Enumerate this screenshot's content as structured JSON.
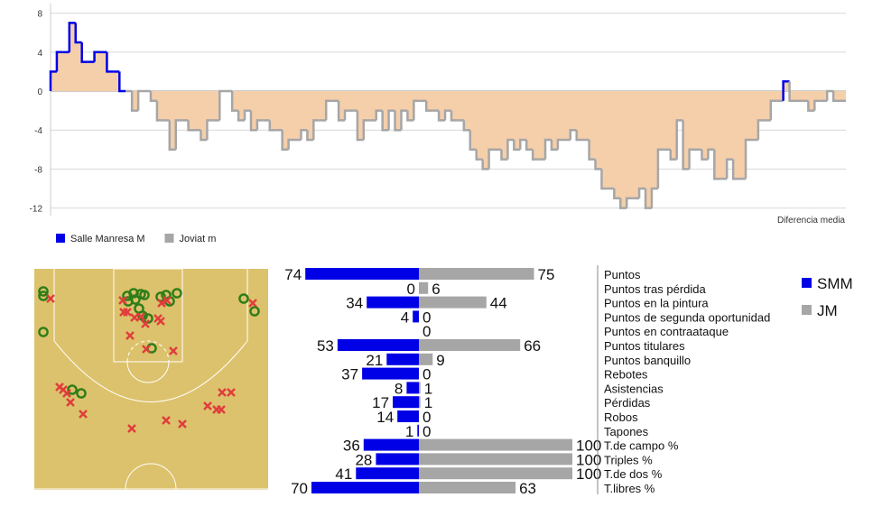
{
  "chart_data": [
    {
      "type": "line",
      "step": true,
      "y_ticks": [
        8,
        4,
        0,
        -4,
        -8,
        -12
      ],
      "ylim": [
        -12.8,
        9
      ],
      "annotation": "Diferencia media",
      "grid": true,
      "legend_position": "bottom-left",
      "legend": [
        {
          "name": "Salle Manresa M",
          "color": "#0000e6"
        },
        {
          "name": "Joviat m",
          "color": "#a6a6a6"
        }
      ],
      "fill_color": "#f5cfaa",
      "values": [
        2,
        4,
        4,
        7,
        5,
        3,
        3,
        4,
        4,
        2,
        2,
        0,
        0,
        -2,
        0,
        0,
        -1,
        -3,
        -3,
        -6,
        -3,
        -3,
        -4,
        -4,
        -5,
        -3,
        -3,
        0,
        0,
        -2,
        -3,
        -2,
        -4,
        -3,
        -3,
        -4,
        -4,
        -6,
        -5,
        -5,
        -4,
        -5,
        -3,
        -3,
        -1,
        -1,
        -3,
        -2,
        -2,
        -5,
        -3,
        -3,
        -2,
        -4,
        -2,
        -4,
        -2,
        -3,
        -1,
        -1,
        -2,
        -2,
        -3,
        -2,
        -3,
        -3,
        -4,
        -6,
        -7,
        -8,
        -6,
        -6,
        -7,
        -5,
        -6,
        -5,
        -6,
        -7,
        -7,
        -5,
        -6,
        -5,
        -5,
        -4,
        -5,
        -5,
        -7,
        -8,
        -10,
        -10,
        -11,
        -12,
        -11,
        -11,
        -10,
        -12,
        -10,
        -6,
        -6,
        -7,
        -3,
        -8,
        -6,
        -6,
        -7,
        -6,
        -9,
        -9,
        -7,
        -9,
        -9,
        -5,
        -5,
        -3,
        -3,
        -1,
        -1,
        1,
        -1,
        -1,
        -1,
        -2,
        -1,
        -1,
        0,
        -1,
        -1
      ]
    },
    {
      "type": "bar",
      "orientation": "horizontal-diverging",
      "categories": [
        "Puntos",
        "Puntos tras pérdida",
        "Puntos en la pintura",
        "Puntos de segunda oportunidad",
        "Puntos en contraataque",
        "Puntos titulares",
        "Puntos banquillo",
        "Rebotes",
        "Asistencias",
        "Pérdidas",
        "Robos",
        "Tapones",
        "T.de campo %",
        "Triples %",
        "T.de dos %",
        "T.libres %"
      ],
      "series": [
        {
          "name": "SMM",
          "color": "#0000e6",
          "values": [
            74,
            0,
            34,
            4,
            null,
            53,
            21,
            37,
            8,
            17,
            14,
            1,
            36,
            28,
            41,
            70
          ]
        },
        {
          "name": "JM",
          "color": "#a6a6a6",
          "values": [
            75,
            6,
            44,
            0,
            0,
            66,
            9,
            0,
            1,
            1,
            0,
            0,
            100,
            100,
            100,
            63
          ]
        }
      ],
      "xlim": [
        0,
        100
      ]
    },
    {
      "type": "scatter",
      "court": {
        "floor_color": "#dcc26c",
        "line_color": "#ffffff"
      },
      "made_color": "#2e7d18",
      "missed_color": "#e03c3c",
      "made": [
        [
          10,
          25
        ],
        [
          10,
          30
        ],
        [
          103,
          30
        ],
        [
          110,
          27
        ],
        [
          118,
          28
        ],
        [
          122,
          29
        ],
        [
          104,
          36
        ],
        [
          112,
          34
        ],
        [
          140,
          31
        ],
        [
          146,
          29
        ],
        [
          150,
          36
        ],
        [
          158,
          27
        ],
        [
          116,
          44
        ],
        [
          120,
          52
        ],
        [
          126,
          55
        ],
        [
          130,
          88
        ],
        [
          232,
          33
        ],
        [
          244,
          47
        ],
        [
          10,
          70
        ],
        [
          42,
          134
        ],
        [
          52,
          138
        ]
      ],
      "missed": [
        [
          18,
          33
        ],
        [
          98,
          35
        ],
        [
          99,
          48
        ],
        [
          103,
          48
        ],
        [
          111,
          54
        ],
        [
          118,
          53
        ],
        [
          123,
          61
        ],
        [
          137,
          55
        ],
        [
          141,
          38
        ],
        [
          147,
          35
        ],
        [
          140,
          58
        ],
        [
          106,
          74
        ],
        [
          124,
          89
        ],
        [
          154,
          91
        ],
        [
          242,
          38
        ],
        [
          28,
          131
        ],
        [
          32,
          134
        ],
        [
          36,
          138
        ],
        [
          40,
          148
        ],
        [
          54,
          161
        ],
        [
          108,
          177
        ],
        [
          146,
          168
        ],
        [
          164,
          172
        ],
        [
          192,
          152
        ],
        [
          202,
          156
        ],
        [
          207,
          156
        ],
        [
          208,
          137
        ],
        [
          218,
          137
        ]
      ]
    }
  ]
}
